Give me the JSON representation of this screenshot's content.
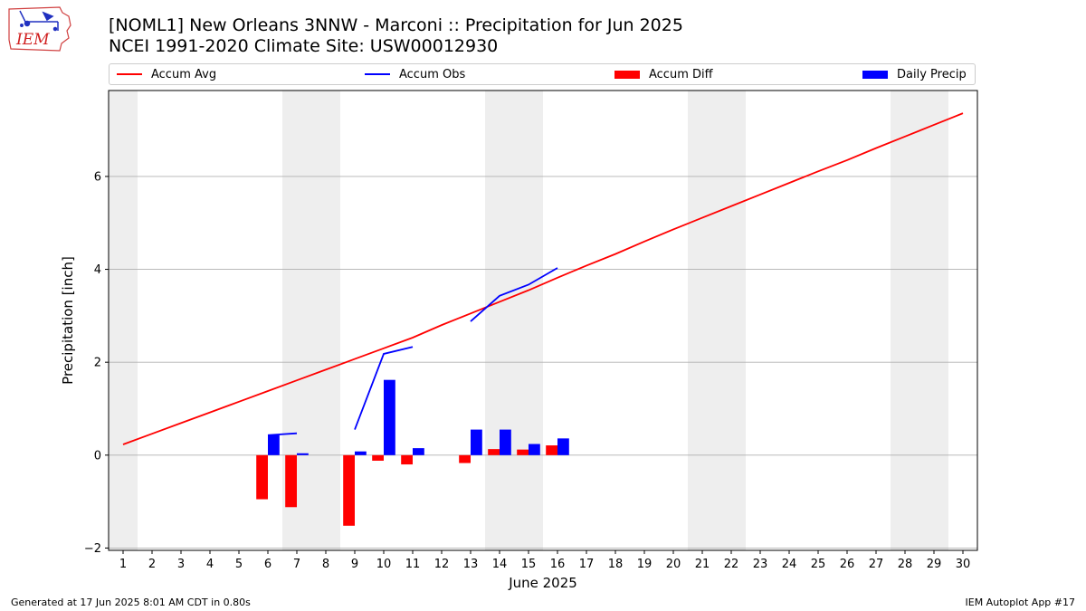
{
  "header": {
    "title_line1": "[NOML1] New Orleans 3NNW - Marconi :: Precipitation for Jun 2025",
    "title_line2": "NCEI 1991-2020 Climate Site: USW00012930",
    "logo_text": "IEM"
  },
  "footer": {
    "generated": "Generated at 17 Jun 2025 8:01 AM CDT in 0.80s",
    "app": "IEM Autoplot App #17"
  },
  "colors": {
    "accum_avg": "#ff0000",
    "accum_obs": "#0000ff",
    "accum_diff": "#ff0000",
    "daily_precip": "#0000ff",
    "weekend_shade": "#eeeeee",
    "grid": "#b0b0b0"
  },
  "chart_data": {
    "type": "bar",
    "title": "[NOML1] New Orleans 3NNW - Marconi :: Precipitation for Jun 2025",
    "subtitle": "NCEI 1991-2020 Climate Site: USW00012930",
    "xlabel": "June 2025",
    "ylabel": "Precipitation [inch]",
    "x": [
      1,
      2,
      3,
      4,
      5,
      6,
      7,
      8,
      9,
      10,
      11,
      12,
      13,
      14,
      15,
      16,
      17,
      18,
      19,
      20,
      21,
      22,
      23,
      24,
      25,
      26,
      27,
      28,
      29,
      30
    ],
    "xlim": [
      0.5,
      30.5
    ],
    "ylim": [
      -2.05,
      7.85
    ],
    "yticks": [
      -2,
      0,
      2,
      4,
      6
    ],
    "grid": "y",
    "legend_position": "top",
    "legend": [
      "Accum Avg",
      "Accum Obs",
      "Accum Diff",
      "Daily Precip"
    ],
    "weekend_days": [
      1,
      7,
      8,
      14,
      15,
      21,
      22,
      28,
      29
    ],
    "series": [
      {
        "name": "Accum Avg",
        "kind": "line",
        "x": [
          1,
          2,
          3,
          4,
          5,
          6,
          7,
          8,
          9,
          10,
          11,
          12,
          13,
          14,
          15,
          16,
          17,
          18,
          19,
          20,
          21,
          22,
          23,
          24,
          25,
          26,
          27,
          28,
          29,
          30
        ],
        "values": [
          0.23,
          0.46,
          0.69,
          0.92,
          1.15,
          1.38,
          1.61,
          1.84,
          2.07,
          2.3,
          2.53,
          2.8,
          3.05,
          3.3,
          3.55,
          3.82,
          4.08,
          4.33,
          4.6,
          4.86,
          5.11,
          5.36,
          5.61,
          5.86,
          6.11,
          6.35,
          6.61,
          6.86,
          7.11,
          7.36
        ]
      },
      {
        "name": "Accum Obs",
        "kind": "line",
        "segments": [
          {
            "x": [
              6,
              7
            ],
            "values": [
              0.43,
              0.47
            ]
          },
          {
            "x": [
              9,
              10,
              11
            ],
            "values": [
              0.55,
              2.18,
              2.33
            ]
          },
          {
            "x": [
              13,
              14,
              15,
              16
            ],
            "values": [
              2.88,
              3.43,
              3.67,
              4.03
            ]
          }
        ]
      },
      {
        "name": "Accum Diff",
        "kind": "bar",
        "x": [
          6,
          7,
          9,
          10,
          11,
          13,
          14,
          15,
          16
        ],
        "values": [
          -0.95,
          -1.12,
          -1.52,
          -0.12,
          -0.2,
          -0.17,
          0.13,
          0.12,
          0.21
        ]
      },
      {
        "name": "Daily Precip",
        "kind": "bar",
        "x": [
          6,
          7,
          9,
          10,
          11,
          13,
          14,
          15,
          16
        ],
        "values": [
          0.43,
          0.04,
          0.08,
          1.62,
          0.15,
          0.55,
          0.55,
          0.24,
          0.36
        ]
      }
    ]
  }
}
